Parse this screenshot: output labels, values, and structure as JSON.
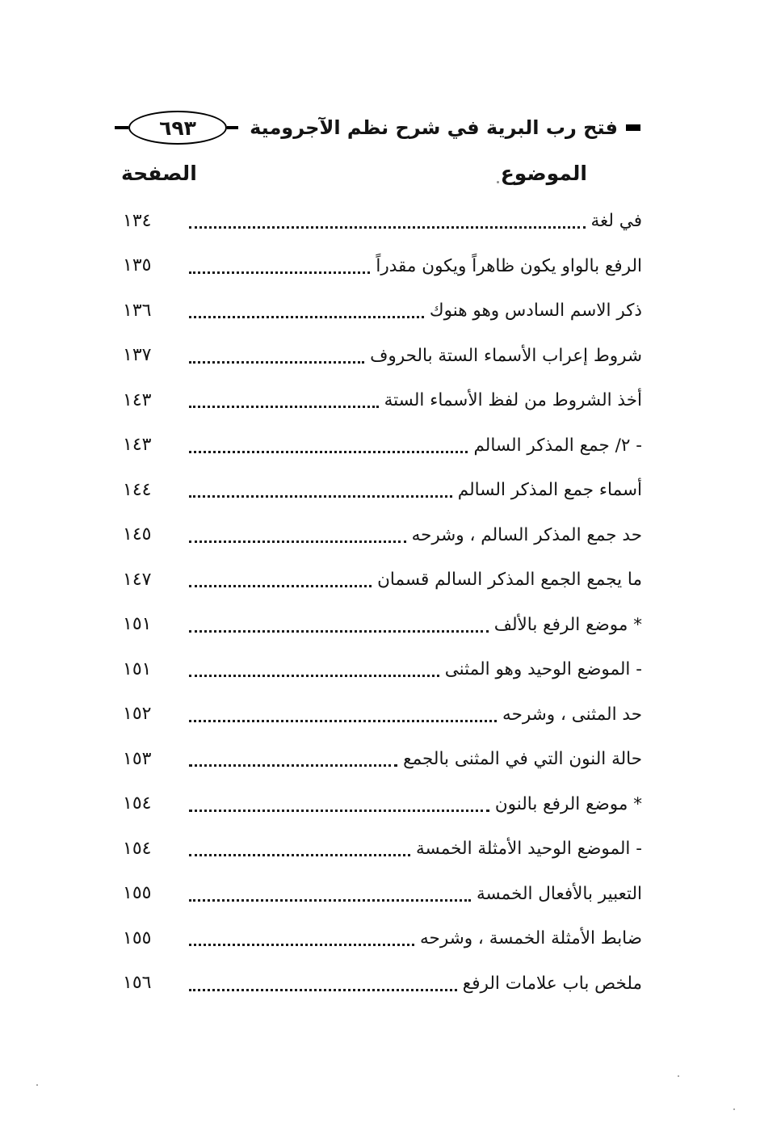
{
  "header": {
    "page_number": "٦٩٣",
    "book_title": "فتح رب البرية في شرح نظم الآجرومية"
  },
  "columns": {
    "topic": "الموضوع",
    "page": "الصفحة"
  },
  "toc": {
    "entries": [
      {
        "topic": "في لغة",
        "page": "١٣٤"
      },
      {
        "topic": "الرفع بالواو يكون ظاهراً ويكون مقدراً",
        "page": "١٣٥"
      },
      {
        "topic": "ذكر الاسم السادس وهو هنوك",
        "page": "١٣٦"
      },
      {
        "topic": "شروط إعراب الأسماء الستة بالحروف",
        "page": "١٣٧"
      },
      {
        "topic": "أخذ الشروط من لفظ الأسماء الستة",
        "page": "١٤٣"
      },
      {
        "topic": "- ٢/ جمع المذكر السالم",
        "page": "١٤٣"
      },
      {
        "topic": "أسماء جمع المذكر السالم",
        "page": "١٤٤"
      },
      {
        "topic": "حد جمع المذكر السالم ، وشرحه",
        "page": "١٤٥"
      },
      {
        "topic": "ما يجمع الجمع المذكر السالم قسمان",
        "page": "١٤٧"
      },
      {
        "topic": "* موضع الرفع بالألف",
        "page": "١٥١"
      },
      {
        "topic": "- الموضع الوحيد وهو المثنى",
        "page": "١٥١"
      },
      {
        "topic": "حد المثنى ، وشرحه",
        "page": "١٥٢"
      },
      {
        "topic": "حالة النون التي في المثنى بالجمع",
        "page": "١٥٣"
      },
      {
        "topic": "* موضع الرفع بالنون",
        "page": "١٥٤"
      },
      {
        "topic": "- الموضع الوحيد الأمثلة الخمسة",
        "page": "١٥٤"
      },
      {
        "topic": "التعبير بالأفعال الخمسة",
        "page": "١٥٥"
      },
      {
        "topic": "ضابط الأمثلة الخمسة ، وشرحه",
        "page": "١٥٥"
      },
      {
        "topic": "ملخص باب علامات الرفع",
        "page": "١٥٦"
      }
    ]
  }
}
